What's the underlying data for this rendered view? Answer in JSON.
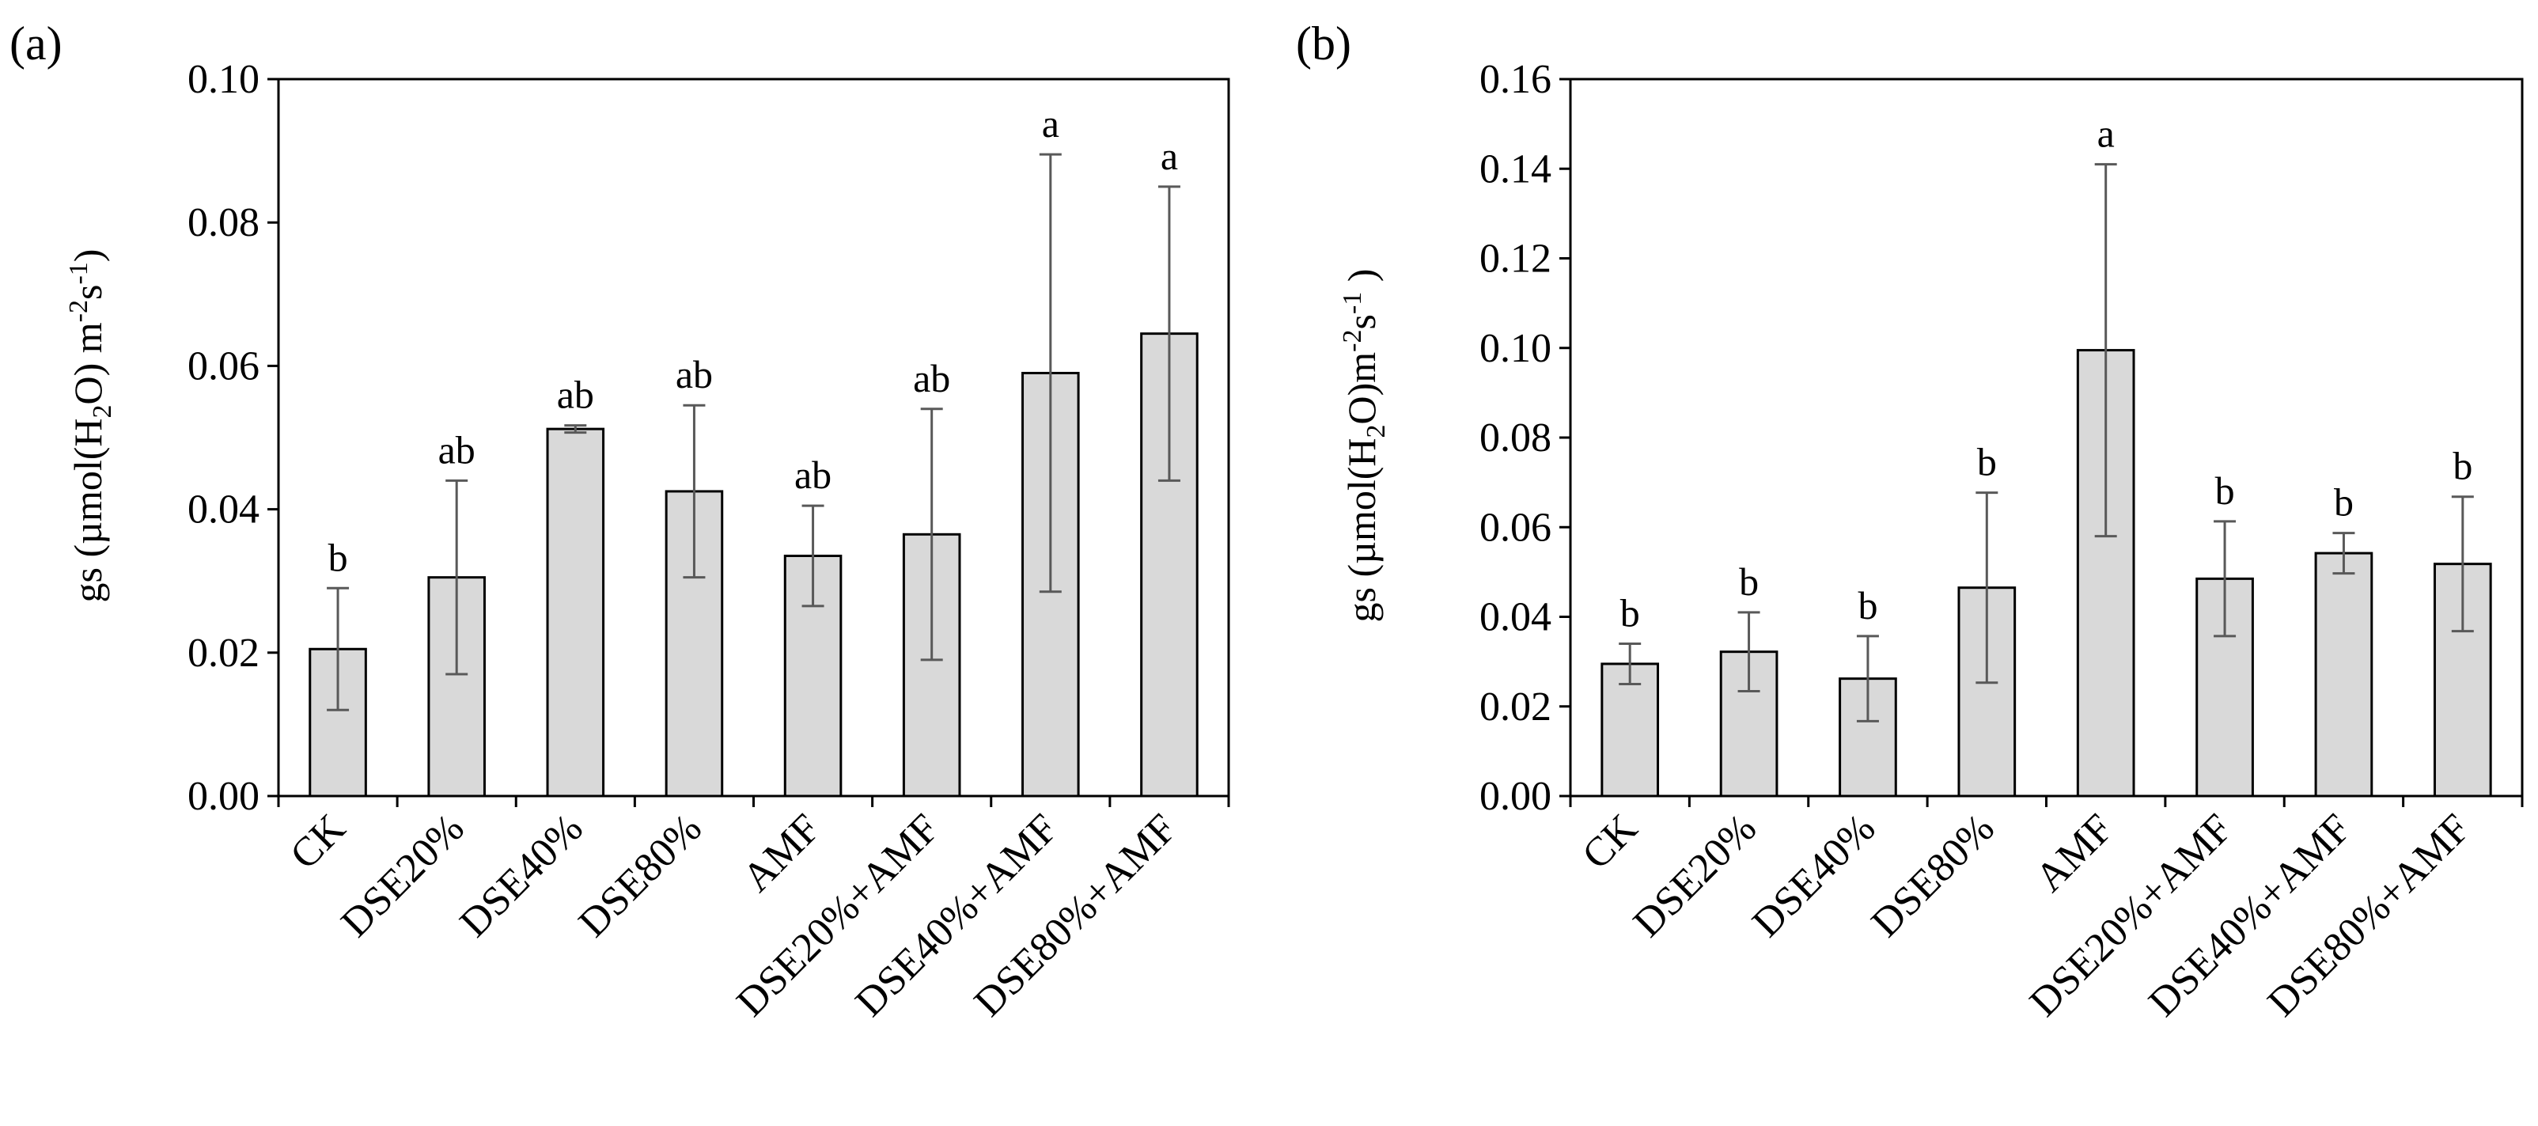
{
  "colors": {
    "bar_fill": "#d9d9d9",
    "bar_stroke": "#000000",
    "error_bar": "#595959",
    "axis": "#000000"
  },
  "chart_data": [
    {
      "type": "bar",
      "panel": "(a)",
      "ylabel": {
        "text1": "gs (µmol(H",
        "sub": "2",
        "text2": "O)  m",
        "sup1": "-2",
        "text3": "s",
        "sup2": "-1",
        "text4": ")"
      },
      "ylim": [
        0,
        0.1
      ],
      "yticks": [
        "0.00",
        "0.02",
        "0.04",
        "0.06",
        "0.08",
        "0.10"
      ],
      "categories": [
        "CK",
        "DSE20%",
        "DSE40%",
        "DSE80%",
        "AMF",
        "DSE20%+AMF",
        "DSE40%+AMF",
        "DSE80%+AMF"
      ],
      "values": [
        0.0205,
        0.0305,
        0.0512,
        0.0425,
        0.0335,
        0.0365,
        0.059,
        0.0645
      ],
      "errors": [
        0.0085,
        0.0135,
        0.0005,
        0.012,
        0.007,
        0.0175,
        0.0305,
        0.0205
      ],
      "letters": [
        "b",
        "ab",
        "ab",
        "ab",
        "ab",
        "ab",
        "a",
        "a"
      ],
      "grid": false
    },
    {
      "type": "bar",
      "panel": "(b)",
      "ylabel": {
        "text1": "gs  (µmol(H",
        "sub": "2",
        "text2": "O)m",
        "sup1": "-2",
        "text3": "s",
        "sup2": "-1",
        "text4": " )"
      },
      "ylim": [
        0,
        0.16
      ],
      "yticks": [
        "0.00",
        "0.02",
        "0.04",
        "0.06",
        "0.08",
        "0.10",
        "0.12",
        "0.14",
        "0.16"
      ],
      "categories": [
        "CK",
        "DSE20%",
        "DSE40%",
        "DSE80%",
        "AMF",
        "DSE20%+AMF",
        "DSE40%+AMF",
        "DSE80%+AMF"
      ],
      "values": [
        0.0295,
        0.0322,
        0.0262,
        0.0465,
        0.0995,
        0.0485,
        0.0542,
        0.0518
      ],
      "errors": [
        0.0045,
        0.0088,
        0.0095,
        0.0212,
        0.0415,
        0.0128,
        0.0045,
        0.015
      ],
      "letters": [
        "b",
        "b",
        "b",
        "b",
        "a",
        "b",
        "b",
        "b"
      ],
      "grid": false
    }
  ]
}
